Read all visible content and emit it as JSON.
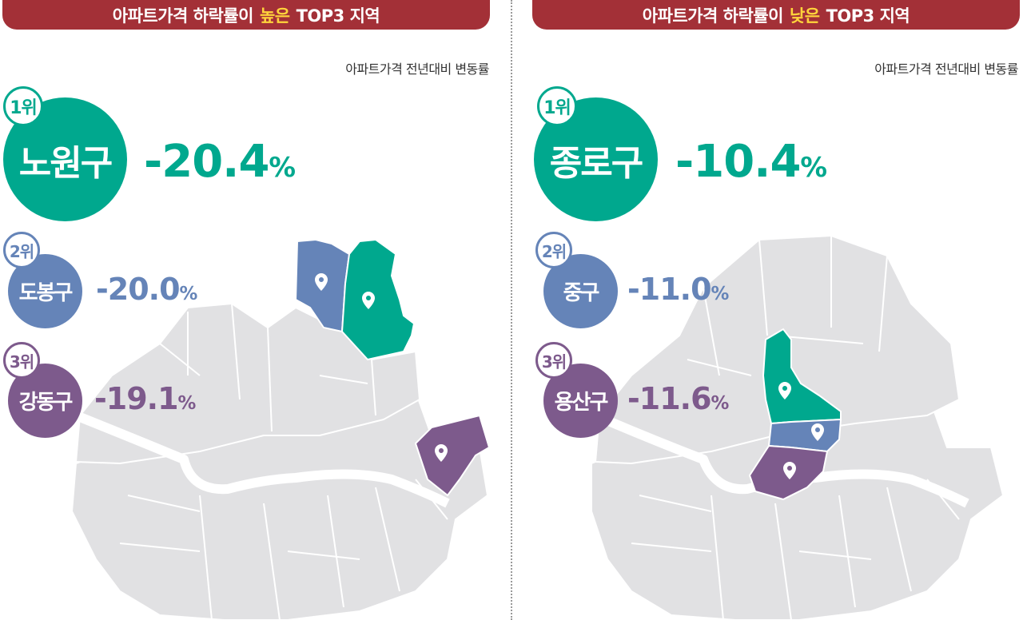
{
  "colors": {
    "rank1": "#00a88e",
    "rank2": "#6584b8",
    "rank3": "#7d5a8c",
    "banner": "#a33037",
    "highlight": "#ffd43b",
    "map_base": "#e1e1e3"
  },
  "left": {
    "banner_prefix": "아파트가격 하락률이",
    "banner_highlight": "높은",
    "banner_suffix": "TOP3 지역",
    "subtitle": "아파트가격 전년대비 변동률",
    "ranks": [
      {
        "rank": "1위",
        "district": "노원구",
        "value": "-20.4",
        "unit": "%"
      },
      {
        "rank": "2위",
        "district": "도봉구",
        "value": "-20.0",
        "unit": "%"
      },
      {
        "rank": "3위",
        "district": "강동구",
        "value": "-19.1",
        "unit": "%"
      }
    ]
  },
  "right": {
    "banner_prefix": "아파트가격 하락률이",
    "banner_highlight": "낮은",
    "banner_suffix": "TOP3 지역",
    "subtitle": "아파트가격 전년대비 변동률",
    "ranks": [
      {
        "rank": "1위",
        "district": "종로구",
        "value": "-10.4",
        "unit": "%"
      },
      {
        "rank": "2위",
        "district": "중구",
        "value": "-11.0",
        "unit": "%"
      },
      {
        "rank": "3위",
        "district": "용산구",
        "value": "-11.6",
        "unit": "%"
      }
    ]
  },
  "icons": {
    "marker": "map-pin-icon"
  }
}
